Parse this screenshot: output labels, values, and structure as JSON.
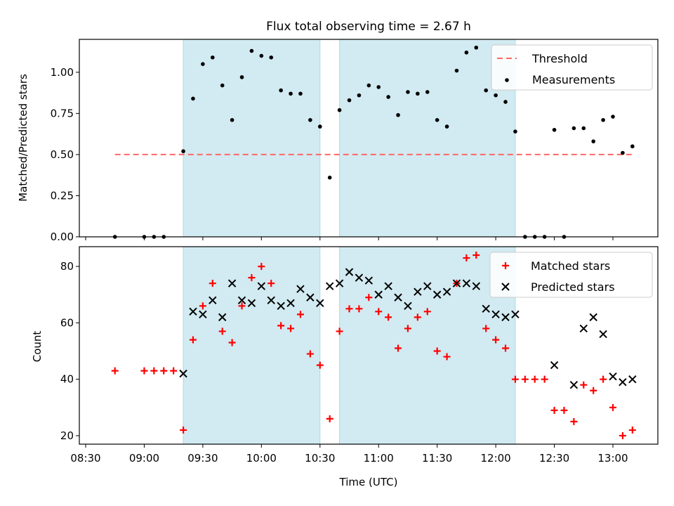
{
  "figure": {
    "title": "Flux total observing time = 2.67 h",
    "xlabel": "Time (UTC)",
    "x_tick_labels": [
      "08:30",
      "09:00",
      "09:30",
      "10:00",
      "10:30",
      "11:00",
      "11:30",
      "12:00",
      "12:30",
      "13:00"
    ]
  },
  "chart_data": [
    {
      "type": "scatter",
      "panel": "top",
      "title": "Flux total observing time = 2.67 h",
      "xlabel": "",
      "ylabel": "Matched/Predicted stars",
      "x_unit": "time UTC (HH:MM)",
      "ylim": [
        0,
        1.2
      ],
      "y_ticks": [
        0.0,
        0.25,
        0.5,
        0.75,
        1.0
      ],
      "y_tick_labels": [
        "0.00",
        "0.25",
        "0.50",
        "0.75",
        "1.00"
      ],
      "legend_position": "top-right",
      "shaded_intervals": [
        [
          "09:20",
          "10:30"
        ],
        [
          "10:40",
          "12:10"
        ]
      ],
      "shade_color": "#add8e6",
      "series": [
        {
          "name": "Threshold",
          "style": "dashed-line",
          "color": "#ff6666",
          "x": [
            "08:45",
            "13:10"
          ],
          "y": [
            0.5,
            0.5
          ]
        },
        {
          "name": "Measurements",
          "style": "point",
          "color": "#000000",
          "x": [
            "08:45",
            "09:00",
            "09:05",
            "09:10",
            "09:20",
            "09:25",
            "09:30",
            "09:35",
            "09:40",
            "09:45",
            "09:50",
            "09:55",
            "10:00",
            "10:05",
            "10:10",
            "10:15",
            "10:20",
            "10:25",
            "10:30",
            "10:35",
            "10:40",
            "10:45",
            "10:50",
            "10:55",
            "11:00",
            "11:05",
            "11:10",
            "11:15",
            "11:20",
            "11:25",
            "11:30",
            "11:35",
            "11:40",
            "11:45",
            "11:50",
            "11:55",
            "12:00",
            "12:05",
            "12:10",
            "12:15",
            "12:20",
            "12:25",
            "12:30",
            "12:35",
            "12:40",
            "12:45",
            "12:50",
            "12:55",
            "13:00",
            "13:05",
            "13:10"
          ],
          "y": [
            0.0,
            0.0,
            0.0,
            0.0,
            0.52,
            0.84,
            1.05,
            1.09,
            0.92,
            0.71,
            0.97,
            1.13,
            1.1,
            1.09,
            0.89,
            0.87,
            0.87,
            0.71,
            0.67,
            0.36,
            0.77,
            0.83,
            0.86,
            0.92,
            0.91,
            0.85,
            0.74,
            0.88,
            0.87,
            0.88,
            0.71,
            0.67,
            1.01,
            1.12,
            1.15,
            0.89,
            0.86,
            0.82,
            0.64,
            0.0,
            0.0,
            0.0,
            0.65,
            0.0,
            0.66,
            0.66,
            0.58,
            0.71,
            0.73,
            0.51,
            0.55
          ]
        }
      ]
    },
    {
      "type": "scatter",
      "panel": "bottom",
      "title": "",
      "xlabel": "Time (UTC)",
      "ylabel": "Count",
      "ylim": [
        17,
        87
      ],
      "y_ticks": [
        20,
        40,
        60,
        80
      ],
      "y_tick_labels": [
        "20",
        "40",
        "60",
        "80"
      ],
      "legend_position": "top-right",
      "shaded_intervals": [
        [
          "09:20",
          "10:30"
        ],
        [
          "10:40",
          "12:10"
        ]
      ],
      "shade_color": "#add8e6",
      "series": [
        {
          "name": "Matched stars",
          "marker": "plus",
          "color": "#ff0000",
          "x": [
            "08:45",
            "09:00",
            "09:05",
            "09:10",
            "09:15",
            "09:20",
            "09:25",
            "09:30",
            "09:35",
            "09:40",
            "09:45",
            "09:50",
            "09:55",
            "10:00",
            "10:05",
            "10:10",
            "10:15",
            "10:20",
            "10:25",
            "10:30",
            "10:35",
            "10:40",
            "10:45",
            "10:50",
            "10:55",
            "11:00",
            "11:05",
            "11:10",
            "11:15",
            "11:20",
            "11:25",
            "11:30",
            "11:35",
            "11:40",
            "11:45",
            "11:50",
            "11:55",
            "12:00",
            "12:05",
            "12:10",
            "12:15",
            "12:20",
            "12:25",
            "12:30",
            "12:35",
            "12:40",
            "12:45",
            "12:50",
            "12:55",
            "13:00",
            "13:05",
            "13:10"
          ],
          "y": [
            43,
            43,
            43,
            43,
            43,
            22,
            54,
            66,
            74,
            57,
            53,
            66,
            76,
            80,
            74,
            59,
            58,
            63,
            49,
            45,
            26,
            57,
            65,
            65,
            69,
            64,
            62,
            51,
            58,
            62,
            64,
            50,
            48,
            74,
            83,
            84,
            58,
            54,
            51,
            40,
            40,
            40,
            40,
            29,
            29,
            25,
            38,
            36,
            40,
            30,
            20,
            22
          ]
        },
        {
          "name": "Predicted stars",
          "marker": "cross",
          "color": "#000000",
          "x": [
            "09:20",
            "09:25",
            "09:30",
            "09:35",
            "09:40",
            "09:45",
            "09:50",
            "09:55",
            "10:00",
            "10:05",
            "10:10",
            "10:15",
            "10:20",
            "10:25",
            "10:30",
            "10:35",
            "10:40",
            "10:45",
            "10:50",
            "10:55",
            "11:00",
            "11:05",
            "11:10",
            "11:15",
            "11:20",
            "11:25",
            "11:30",
            "11:35",
            "11:40",
            "11:45",
            "11:50",
            "11:55",
            "12:00",
            "12:05",
            "12:10",
            "12:30",
            "12:40",
            "12:45",
            "12:50",
            "12:55",
            "13:00",
            "13:05",
            "13:10"
          ],
          "y": [
            42,
            64,
            63,
            68,
            62,
            74,
            68,
            67,
            73,
            68,
            66,
            67,
            72,
            69,
            67,
            73,
            74,
            78,
            76,
            75,
            70,
            73,
            69,
            66,
            71,
            73,
            70,
            71,
            74,
            74,
            73,
            65,
            63,
            62,
            63,
            45,
            38,
            58,
            62,
            56,
            41,
            39,
            40
          ]
        }
      ]
    }
  ]
}
